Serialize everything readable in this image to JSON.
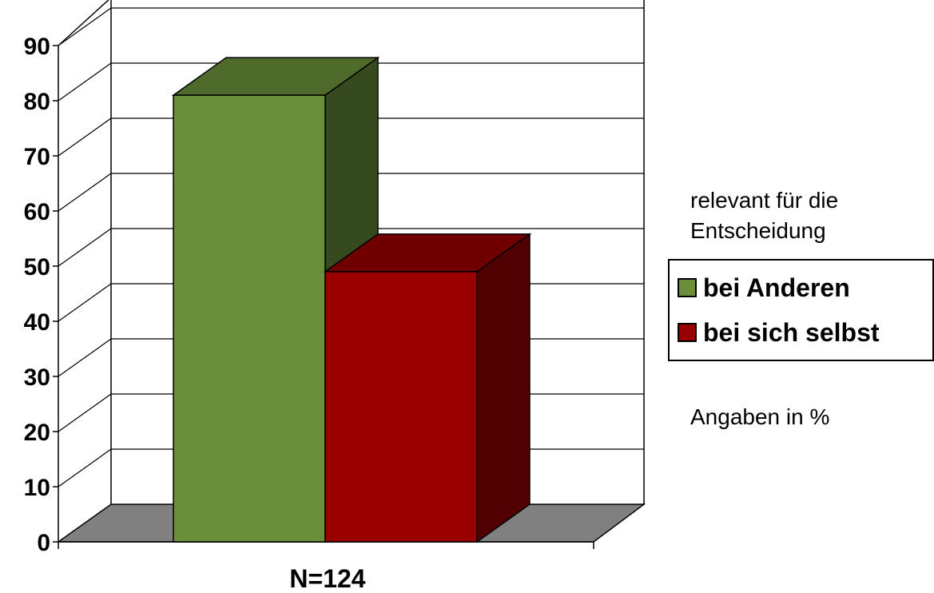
{
  "chart_data": {
    "type": "bar",
    "categories": [
      "N=124"
    ],
    "series": [
      {
        "name": "bei Anderen",
        "values": [
          81
        ],
        "color": "#6B8E3A",
        "top_color": "#4E6B2B",
        "side_color": "#354A1F"
      },
      {
        "name": "bei sich selbst",
        "values": [
          49
        ],
        "color": "#990000",
        "top_color": "#700000",
        "side_color": "#500000"
      }
    ],
    "ylim": [
      0,
      90
    ],
    "yticks": [
      0,
      10,
      20,
      30,
      40,
      50,
      60,
      70,
      80,
      90
    ],
    "grid": true,
    "three_d": true,
    "legend_placement": "right",
    "legend_title": "relevant für die Entscheidung",
    "legend_title_lines": [
      "relevant für die",
      "Entscheidung"
    ],
    "note": "Angaben in %",
    "floor_color": "#808080"
  }
}
